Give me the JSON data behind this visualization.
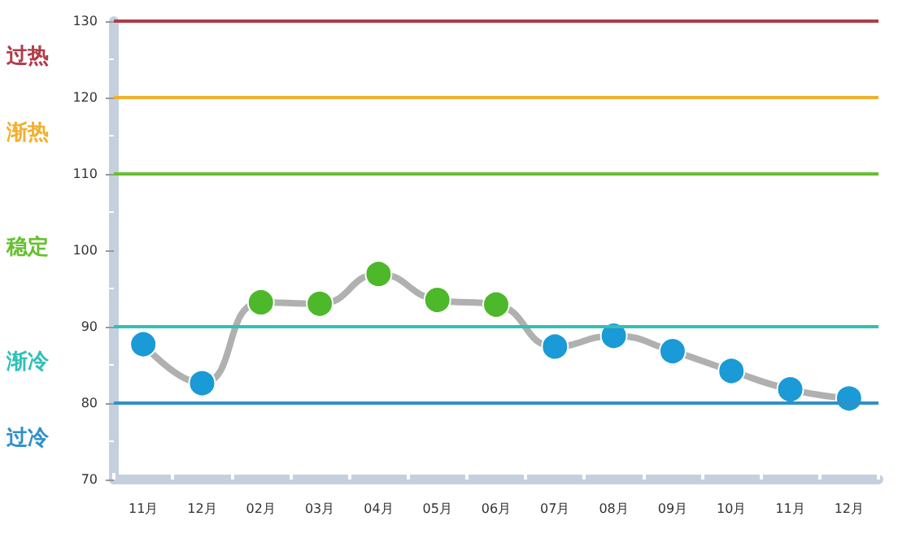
{
  "chart_data": {
    "type": "line",
    "categories": [
      "11月",
      "12月",
      "02月",
      "03月",
      "04月",
      "05月",
      "06月",
      "07月",
      "08月",
      "09月",
      "10月",
      "11月",
      "12月"
    ],
    "series": [
      {
        "color": "#b0b0b0",
        "colors": [
          "#1a9ad6",
          "#1a9ad6",
          "#4cb82a",
          "#4cb82a",
          "#4cb82a",
          "#4cb82a",
          "#4cb82a",
          "#1a9ad6",
          "#1a9ad6",
          "#1a9ad6",
          "#1a9ad6",
          "#1a9ad6",
          "#1a9ad6"
        ],
        "values": [
          87.7,
          82.6,
          93.2,
          93,
          96.9,
          93.5,
          92.9,
          87.4,
          88.8,
          86.8,
          84.2,
          81.8,
          80.6
        ]
      }
    ],
    "ylim": [
      70,
      130
    ],
    "yticks": [
      70,
      80,
      90,
      100,
      110,
      120,
      130
    ],
    "grid": false,
    "marker": "circle",
    "line_style": "solid",
    "ref_lines": [
      {
        "axis": "y",
        "value": 130,
        "color": "#b03a48"
      },
      {
        "axis": "y",
        "value": 120,
        "color": "#f0b030"
      },
      {
        "axis": "y",
        "value": 110,
        "color": "#66c030"
      },
      {
        "axis": "y",
        "value": 90,
        "color": "#30c0b8"
      },
      {
        "axis": "y",
        "value": 80,
        "color": "#3090c8"
      }
    ],
    "annotations": [
      "过热",
      "渐热",
      "稳定",
      "渐冷",
      "过冷"
    ]
  }
}
